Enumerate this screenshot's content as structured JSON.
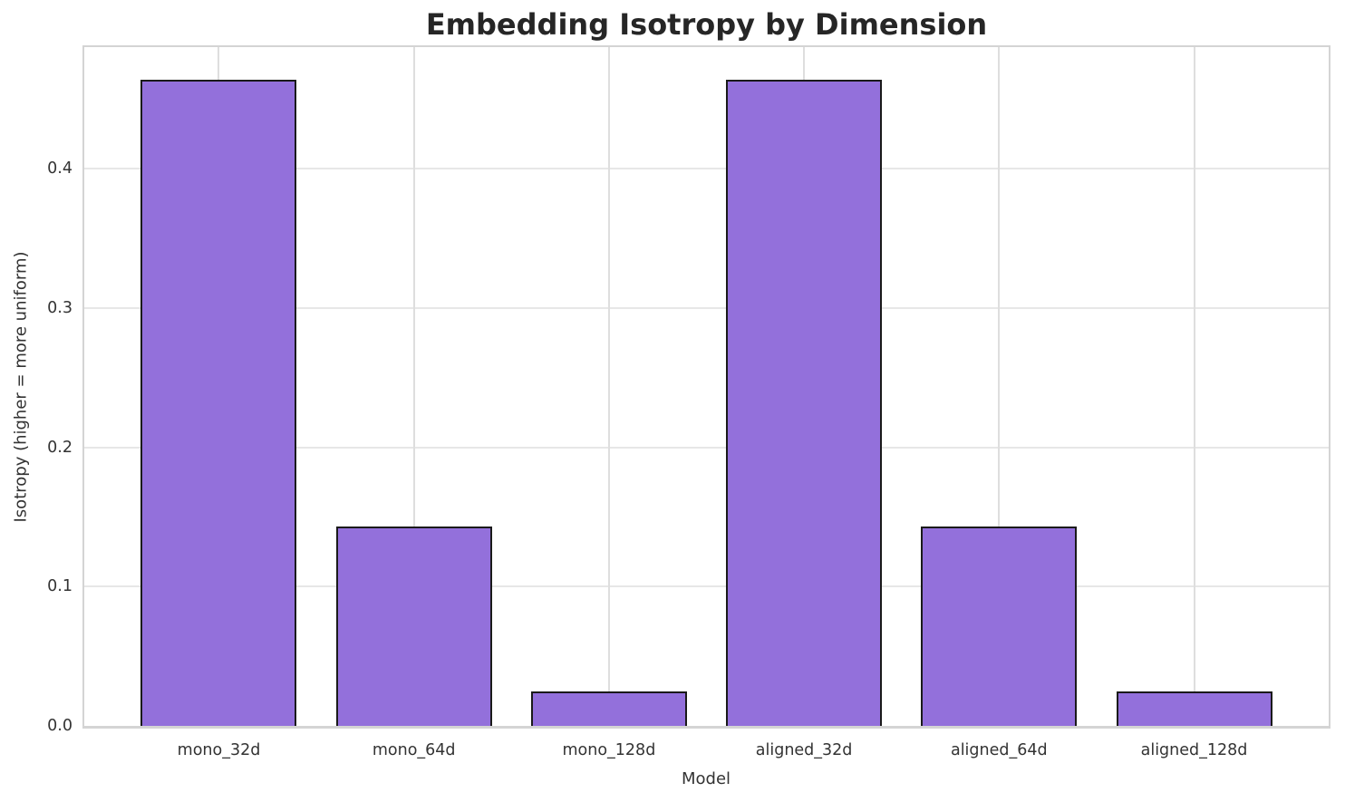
{
  "chart_data": {
    "type": "bar",
    "title": "Embedding Isotropy by Dimension",
    "xlabel": "Model",
    "ylabel": "Isotropy (higher = more uniform)",
    "categories": [
      "mono_32d",
      "mono_64d",
      "mono_128d",
      "aligned_32d",
      "aligned_64d",
      "aligned_128d"
    ],
    "values": [
      0.464,
      0.143,
      0.025,
      0.464,
      0.143,
      0.025
    ],
    "yticks": [
      "0.0",
      "0.1",
      "0.2",
      "0.3",
      "0.4"
    ],
    "ytick_values": [
      0.0,
      0.1,
      0.2,
      0.3,
      0.4
    ],
    "ylim": [
      0,
      0.4872
    ],
    "xlim": [
      -0.69,
      5.69
    ],
    "bar_width": 0.8,
    "grid": true,
    "legend": "none",
    "colors": {
      "bar_fill": "#9370DB",
      "bar_edge": "#1a1a1a",
      "grid": "#e4e4e4",
      "spine": "#d4d4d4",
      "title_text": "#262626",
      "tick_text": "#333333"
    }
  }
}
